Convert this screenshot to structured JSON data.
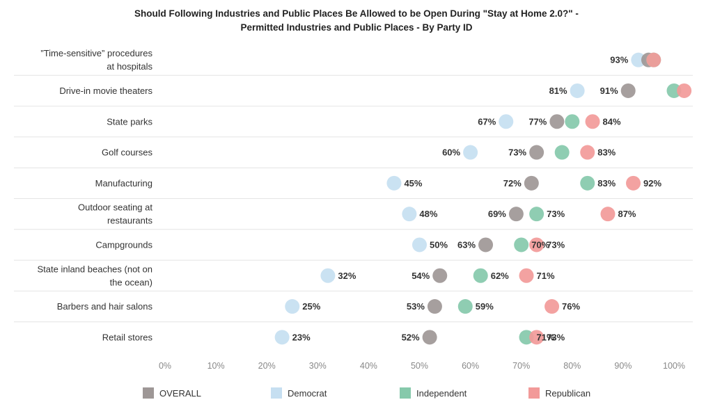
{
  "chart_data": {
    "type": "scatter",
    "title": "Should Following Industries and Public Places Be Allowed to be Open During \"Stay at Home 2.0?\" -",
    "subtitle": "Permitted Industries and Public Places - By Party ID",
    "xlim": [
      0,
      100
    ],
    "x_ticks": [
      "0%",
      "10%",
      "20%",
      "30%",
      "40%",
      "50%",
      "60%",
      "70%",
      "80%",
      "90%",
      "100%"
    ],
    "categories": [
      [
        "”Time-sensitive” procedures",
        "at hospitals"
      ],
      [
        "Drive-in movie theaters"
      ],
      [
        "State parks"
      ],
      [
        "Golf courses"
      ],
      [
        "Manufacturing"
      ],
      [
        "Outdoor seating at",
        "restaurants"
      ],
      [
        "Campgrounds"
      ],
      [
        "State inland beaches (not on",
        "the ocean)"
      ],
      [
        "Barbers and hair salons"
      ],
      [
        "Retail stores"
      ]
    ],
    "series": [
      {
        "name": "OVERALL",
        "color": "#9e9796",
        "values": [
          95,
          91,
          77,
          73,
          72,
          69,
          63,
          54,
          53,
          52
        ]
      },
      {
        "name": "Democrat",
        "color": "#c6dff1",
        "values": [
          93,
          81,
          67,
          60,
          45,
          48,
          50,
          32,
          25,
          23
        ]
      },
      {
        "name": "Independent",
        "color": "#86c9ab",
        "values": [
          96,
          100,
          80,
          78,
          83,
          73,
          70,
          62,
          59,
          71
        ]
      },
      {
        "name": "Republican",
        "color": "#f29a99",
        "values": [
          96,
          102,
          84,
          83,
          92,
          87,
          73,
          71,
          76,
          73
        ]
      }
    ],
    "point_labels": [
      [
        {
          "series": 1,
          "text": "93%"
        }
      ],
      [
        {
          "series": 1,
          "text": "81%"
        },
        {
          "series": 0,
          "text": "91%"
        }
      ],
      [
        {
          "series": 1,
          "text": "67%"
        },
        {
          "series": 0,
          "text": "77%"
        },
        {
          "series": 3,
          "text": "84%"
        }
      ],
      [
        {
          "series": 1,
          "text": "60%"
        },
        {
          "series": 0,
          "text": "73%"
        },
        {
          "series": 3,
          "text": "83%"
        }
      ],
      [
        {
          "series": 1,
          "text": "45%"
        },
        {
          "series": 0,
          "text": "72%"
        },
        {
          "series": 2,
          "text": "83%"
        },
        {
          "series": 3,
          "text": "92%"
        }
      ],
      [
        {
          "series": 1,
          "text": "48%"
        },
        {
          "series": 0,
          "text": "69%"
        },
        {
          "series": 2,
          "text": "73%"
        },
        {
          "series": 3,
          "text": "87%"
        }
      ],
      [
        {
          "series": 1,
          "text": "50%"
        },
        {
          "series": 0,
          "text": "63%"
        },
        {
          "series": 2,
          "text": "70%"
        },
        {
          "series": 3,
          "text": "73%"
        }
      ],
      [
        {
          "series": 1,
          "text": "32%"
        },
        {
          "series": 0,
          "text": "54%"
        },
        {
          "series": 2,
          "text": "62%"
        },
        {
          "series": 3,
          "text": "71%"
        }
      ],
      [
        {
          "series": 1,
          "text": "25%"
        },
        {
          "series": 0,
          "text": "53%"
        },
        {
          "series": 2,
          "text": "59%"
        },
        {
          "series": 3,
          "text": "76%"
        }
      ],
      [
        {
          "series": 1,
          "text": "23%"
        },
        {
          "series": 0,
          "text": "52%"
        },
        {
          "series": 2,
          "text": "71%"
        },
        {
          "series": 3,
          "text": "73%"
        }
      ]
    ],
    "legend_position": "bottom",
    "grid": "horizontal row separators"
  },
  "legend": {
    "overall": "OVERALL",
    "democrat": "Democrat",
    "independent": "Independent",
    "republican": "Republican"
  }
}
